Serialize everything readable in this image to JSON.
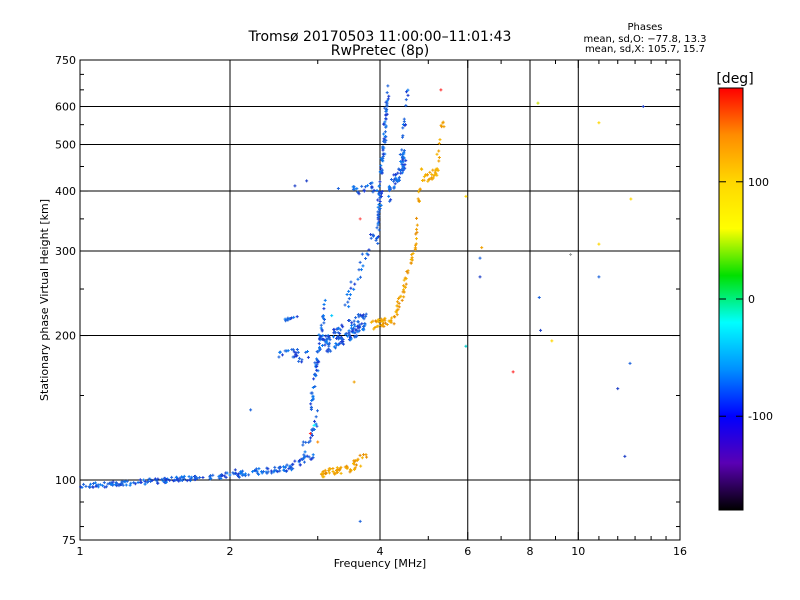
{
  "chart_data": {
    "type": "scatter",
    "title": "Tromsø 20170503 11:00:00–11:01:43",
    "subtitle": "RwPretec (8p)",
    "xlabel": "Frequency [MHz]",
    "ylabel": "Stationary phase Virtual Height [km]",
    "x_scale": "log",
    "y_scale": "log",
    "xlim": [
      1,
      16
    ],
    "ylim": [
      75,
      750
    ],
    "x_ticks": [
      1,
      2,
      4,
      6,
      8,
      10,
      16
    ],
    "x_tick_labels": [
      "1",
      "2",
      "4",
      "6",
      "8",
      "10",
      "16"
    ],
    "y_ticks": [
      75,
      100,
      200,
      300,
      400,
      500,
      600,
      750
    ],
    "y_tick_labels": [
      "75",
      "100",
      "200",
      "300",
      "400",
      "500",
      "600",
      "750"
    ],
    "grid_x": [
      2,
      4,
      6,
      8,
      10
    ],
    "grid_y": [
      100,
      200,
      300,
      400,
      500,
      600
    ],
    "phases_box": {
      "title": "Phases",
      "line_o": "mean, sd,O: −77.8, 13.3",
      "line_x": "mean, sd,X: 105.7, 15.7"
    },
    "colorbar": {
      "label": "[deg]",
      "range": [
        -180,
        180
      ],
      "ticks": [
        100,
        0,
        -100
      ],
      "tick_labels": [
        "100",
        "0",
        "-100"
      ],
      "colors": [
        "#ff0000",
        "#ff8c00",
        "#ffd700",
        "#ffff00",
        "#00e000",
        "#00ffff",
        "#0090ff",
        "#0000ff",
        "#5a00b4",
        "#000000"
      ]
    },
    "series": [
      {
        "name": "O-mode (blue)",
        "color": "#1e64dc",
        "segments": [
          {
            "f0": 1.0,
            "f1": 1.95,
            "h0": 97,
            "h1": 102,
            "n": 130,
            "jit": 0.012
          },
          {
            "f0": 1.95,
            "f1": 2.6,
            "h0": 102,
            "h1": 106,
            "n": 60,
            "jit": 0.015
          },
          {
            "f0": 2.6,
            "f1": 2.95,
            "h0": 106,
            "h1": 112,
            "n": 30,
            "jit": 0.02
          },
          {
            "f0": 2.8,
            "f1": 3.0,
            "h0": 115,
            "h1": 135,
            "n": 20,
            "jit": 0.04
          },
          {
            "f0": 2.9,
            "f1": 3.1,
            "h0": 140,
            "h1": 230,
            "n": 60,
            "jit": 0.05
          },
          {
            "f0": 3.05,
            "f1": 3.75,
            "h0": 190,
            "h1": 215,
            "n": 130,
            "jit": 0.05
          },
          {
            "f0": 2.5,
            "f1": 2.9,
            "h0": 185,
            "h1": 180,
            "n": 25,
            "jit": 0.03
          },
          {
            "f0": 2.55,
            "f1": 2.75,
            "h0": 215,
            "h1": 218,
            "n": 10,
            "jit": 0.01
          },
          {
            "f0": 3.4,
            "f1": 3.95,
            "h0": 230,
            "h1": 330,
            "n": 30,
            "jit": 0.05
          },
          {
            "f0": 3.5,
            "f1": 3.95,
            "h0": 400,
            "h1": 410,
            "n": 22,
            "jit": 0.025
          },
          {
            "f0": 3.95,
            "f1": 4.15,
            "h0": 330,
            "h1": 640,
            "n": 90,
            "jit": 0.07
          },
          {
            "f0": 4.15,
            "f1": 4.5,
            "h0": 390,
            "h1": 470,
            "n": 60,
            "jit": 0.05
          },
          {
            "f0": 4.4,
            "f1": 4.55,
            "h0": 480,
            "h1": 640,
            "n": 15,
            "jit": 0.03
          }
        ]
      },
      {
        "name": "X-mode (orange)",
        "color": "#f0a000",
        "segments": [
          {
            "f0": 3.05,
            "f1": 3.5,
            "h0": 103,
            "h1": 106,
            "n": 40,
            "jit": 0.018
          },
          {
            "f0": 3.5,
            "f1": 3.75,
            "h0": 106,
            "h1": 112,
            "n": 18,
            "jit": 0.025
          },
          {
            "f0": 3.85,
            "f1": 4.3,
            "h0": 210,
            "h1": 216,
            "n": 35,
            "jit": 0.02
          },
          {
            "f0": 4.3,
            "f1": 4.7,
            "h0": 220,
            "h1": 300,
            "n": 35,
            "jit": 0.035
          },
          {
            "f0": 4.7,
            "f1": 4.85,
            "h0": 300,
            "h1": 440,
            "n": 20,
            "jit": 0.04
          },
          {
            "f0": 4.85,
            "f1": 5.25,
            "h0": 420,
            "h1": 440,
            "n": 25,
            "jit": 0.02
          },
          {
            "f0": 5.2,
            "f1": 5.35,
            "h0": 450,
            "h1": 560,
            "n": 12,
            "jit": 0.03
          }
        ]
      }
    ],
    "outliers": [
      {
        "f": 2.85,
        "h": 420,
        "color": "#1e40c8"
      },
      {
        "f": 2.7,
        "h": 410,
        "color": "#1e40c8"
      },
      {
        "f": 3.3,
        "h": 405,
        "color": "#1e64dc"
      },
      {
        "f": 3.65,
        "h": 350,
        "color": "#ff5050"
      },
      {
        "f": 3.2,
        "h": 220,
        "color": "#00c8ff"
      },
      {
        "f": 3.55,
        "h": 160,
        "color": "#f0a000"
      },
      {
        "f": 3.65,
        "h": 82,
        "color": "#1e64dc"
      },
      {
        "f": 2.2,
        "h": 140,
        "color": "#1e64dc"
      },
      {
        "f": 2.05,
        "h": 105,
        "color": "#1e40c8"
      },
      {
        "f": 2.9,
        "h": 125,
        "color": "#ff3030"
      },
      {
        "f": 2.95,
        "h": 130,
        "color": "#00ffff"
      },
      {
        "f": 3.0,
        "h": 120,
        "color": "#ff8c00"
      },
      {
        "f": 5.3,
        "h": 650,
        "color": "#ff3030"
      },
      {
        "f": 5.95,
        "h": 390,
        "color": "#ffd700"
      },
      {
        "f": 6.4,
        "h": 305,
        "color": "#f0a000"
      },
      {
        "f": 6.35,
        "h": 290,
        "color": "#1e64dc"
      },
      {
        "f": 6.35,
        "h": 265,
        "color": "#1e40c8"
      },
      {
        "f": 5.95,
        "h": 190,
        "color": "#00c8c8"
      },
      {
        "f": 7.4,
        "h": 168,
        "color": "#ff3030"
      },
      {
        "f": 8.3,
        "h": 610,
        "color": "#c8e000"
      },
      {
        "f": 8.35,
        "h": 240,
        "color": "#1e64dc"
      },
      {
        "f": 8.4,
        "h": 205,
        "color": "#1e40c8"
      },
      {
        "f": 8.85,
        "h": 195,
        "color": "#ffd700"
      },
      {
        "f": 9.65,
        "h": 295,
        "color": "#9ca0a0"
      },
      {
        "f": 11.0,
        "h": 555,
        "color": "#ffd700"
      },
      {
        "f": 11.0,
        "h": 310,
        "color": "#ffd700"
      },
      {
        "f": 11.0,
        "h": 265,
        "color": "#1e64dc"
      },
      {
        "f": 12.0,
        "h": 155,
        "color": "#1e40c8"
      },
      {
        "f": 12.4,
        "h": 112,
        "color": "#1e40c8"
      },
      {
        "f": 12.7,
        "h": 175,
        "color": "#1e64dc"
      },
      {
        "f": 12.75,
        "h": 385,
        "color": "#ffd700"
      },
      {
        "f": 13.5,
        "h": 600,
        "color": "#1e40c8"
      }
    ]
  }
}
